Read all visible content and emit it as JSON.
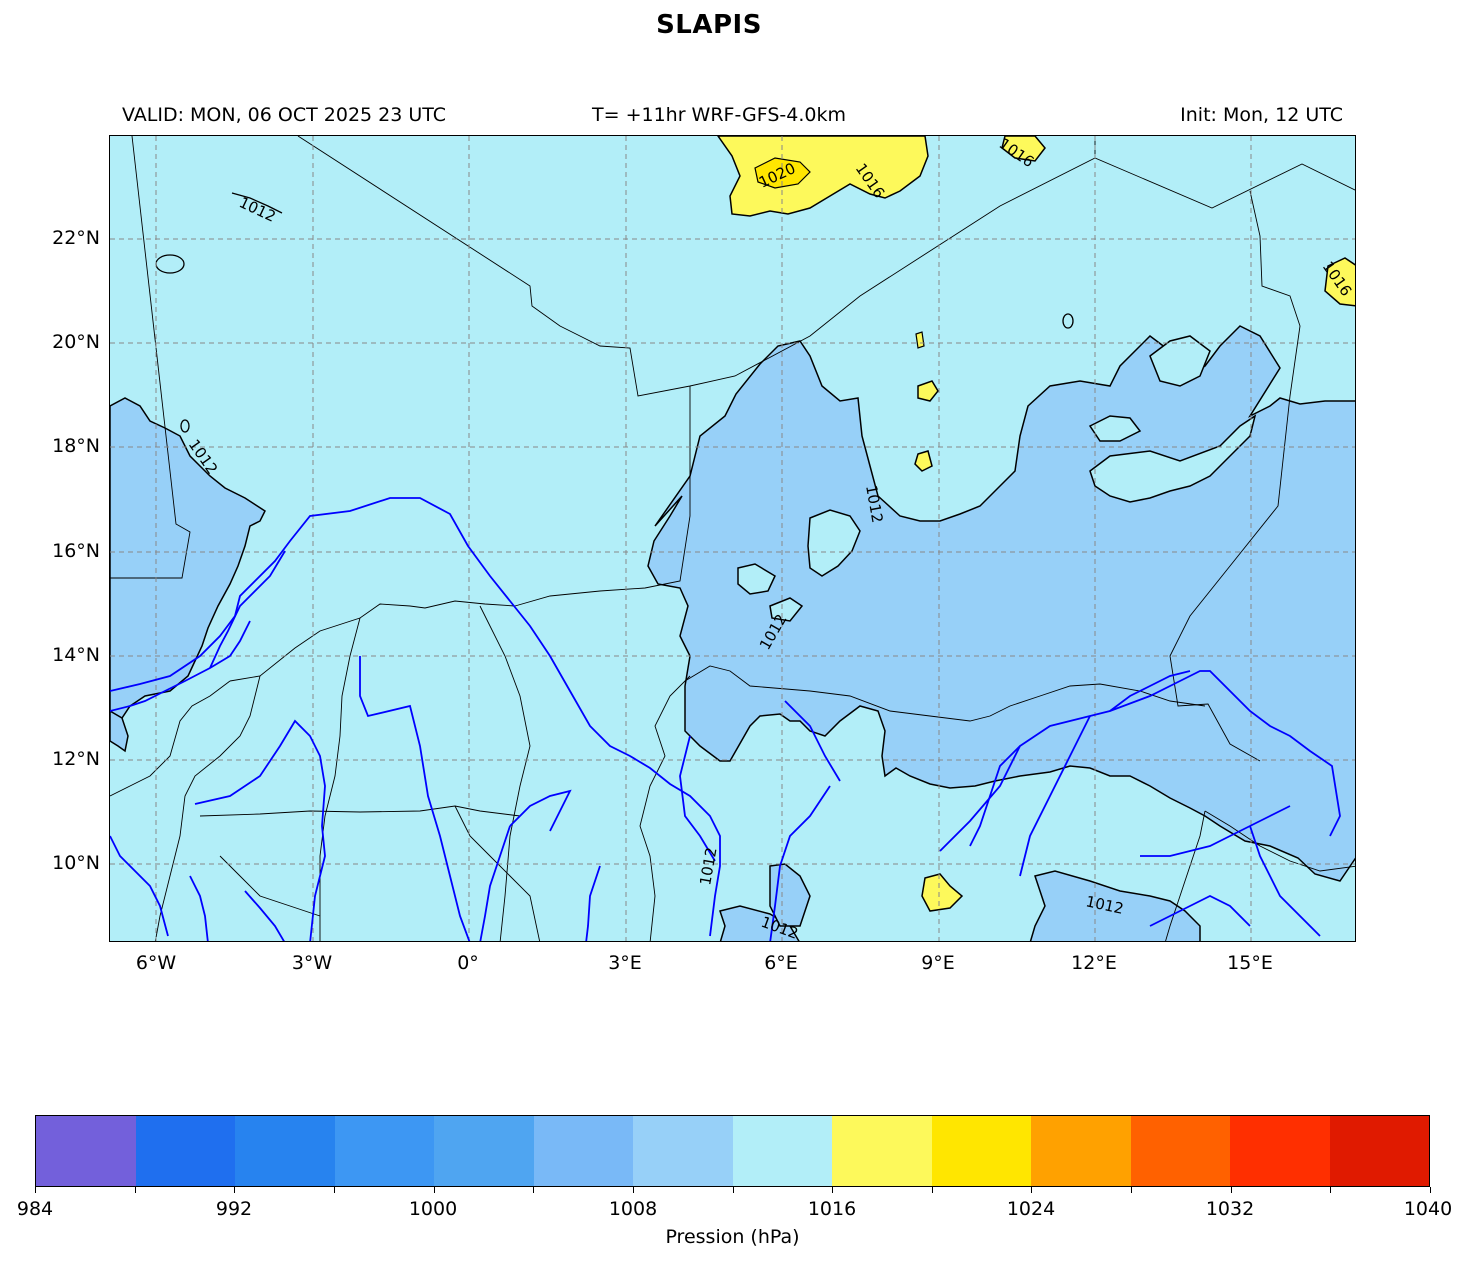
{
  "title": "SLAPIS",
  "subtitle_left": "VALID: MON, 06 OCT 2025 23 UTC",
  "subtitle_center": "T= +11hr WRF-GFS-4.0km",
  "subtitle_right": "Init: Mon, 12 UTC",
  "lat_labels": [
    "22°N",
    "20°N",
    "18°N",
    "16°N",
    "14°N",
    "12°N",
    "10°N"
  ],
  "lon_labels": [
    "6°W",
    "3°W",
    "0°",
    "3°E",
    "6°E",
    "9°E",
    "12°E",
    "15°E"
  ],
  "contour_labels": [
    "1012",
    "1012",
    "1012",
    "1012",
    "1012",
    "1012",
    "1012",
    "1016",
    "1016",
    "1016",
    "1020"
  ],
  "colorbar": {
    "label": "Pression (hPa)",
    "tick_labels": [
      "984",
      "992",
      "1000",
      "1008",
      "1016",
      "1024",
      "1032",
      "1040"
    ],
    "colors": [
      "#7360db",
      "#1f6fef",
      "#2783ef",
      "#3d97f3",
      "#4fa5f1",
      "#79b9f7",
      "#97d0f8",
      "#b2eef8",
      "#fdf95b",
      "#ffe600",
      "#ffa100",
      "#ff6100",
      "#ff2f00",
      "#e01a00"
    ]
  },
  "map_colors": {
    "ocean_like_fill": "#b2eef8",
    "low_fill": "#97d0f8",
    "high_fill": "#fdf95b",
    "river": "#0000ff",
    "border": "#000000",
    "grid": "#888888"
  }
}
